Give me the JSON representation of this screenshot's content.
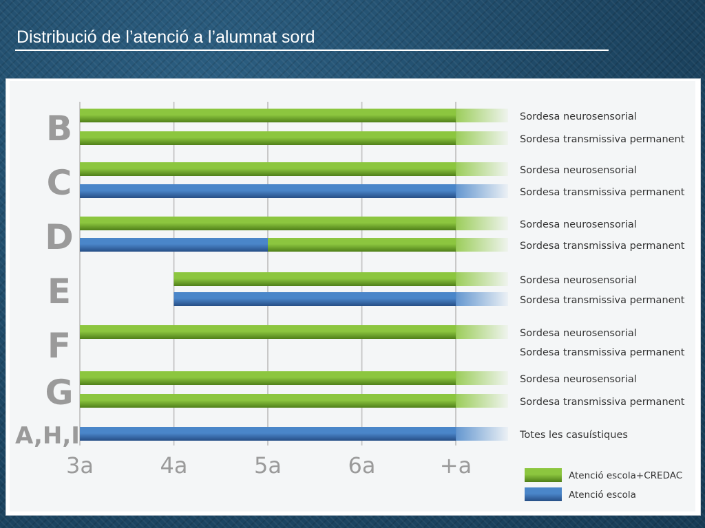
{
  "slide": {
    "title": "Distribució de l’atenció a l’alumnat sord"
  },
  "colors": {
    "green": "#8cc63f",
    "green_dark": "#4f7f19",
    "blue": "#4a86c9",
    "blue_dark": "#264f86",
    "axis_text": "#9a9a9a",
    "grid": "#c8c8c8",
    "label_text": "#333333"
  },
  "chart_data": {
    "type": "bar",
    "orientation": "horizontal",
    "stacked": true,
    "x_ticks": [
      "3a",
      "4a",
      "5a",
      "6a",
      "+a"
    ],
    "x_range": [
      "3a",
      "+a"
    ],
    "grid": true,
    "legend_position": "bottom-right",
    "legend": [
      {
        "key": "escola_credac",
        "label": "Atenció escola+CREDAC",
        "color": "#8cc63f"
      },
      {
        "key": "escola",
        "label": "Atenció escola",
        "color": "#4a86c9"
      }
    ],
    "groups": [
      {
        "name": "B",
        "rows": [
          {
            "label": "Sordesa neurosensorial",
            "segments": [
              {
                "from": 0,
                "to": 4,
                "series": "escola_credac"
              }
            ]
          },
          {
            "label": "Sordesa transmissiva permanent",
            "segments": [
              {
                "from": 0,
                "to": 4,
                "series": "escola_credac"
              }
            ]
          }
        ]
      },
      {
        "name": "C",
        "rows": [
          {
            "label": "Sordesa neurosensorial",
            "segments": [
              {
                "from": 0,
                "to": 4,
                "series": "escola_credac"
              }
            ]
          },
          {
            "label": "Sordesa transmissiva permanent",
            "segments": [
              {
                "from": 0,
                "to": 4,
                "series": "escola"
              }
            ]
          }
        ]
      },
      {
        "name": "D",
        "rows": [
          {
            "label": "Sordesa neurosensorial",
            "segments": [
              {
                "from": 0,
                "to": 4,
                "series": "escola_credac"
              }
            ]
          },
          {
            "label": "Sordesa transmissiva permanent",
            "segments": [
              {
                "from": 0,
                "to": 2,
                "series": "escola"
              },
              {
                "from": 2,
                "to": 4,
                "series": "escola_credac"
              }
            ]
          }
        ]
      },
      {
        "name": "E",
        "rows": [
          {
            "label": "Sordesa neurosensorial",
            "segments": [
              {
                "from": 1,
                "to": 4,
                "series": "escola_credac"
              }
            ]
          },
          {
            "label": "Sordesa transmissiva permanent",
            "segments": [
              {
                "from": 1,
                "to": 4,
                "series": "escola"
              }
            ]
          }
        ]
      },
      {
        "name": "F",
        "rows": [
          {
            "label": "Sordesa neurosensorial",
            "segments": [
              {
                "from": 0,
                "to": 4,
                "series": "escola_credac"
              }
            ]
          },
          {
            "label": "Sordesa transmissiva permanent",
            "segments": []
          }
        ]
      },
      {
        "name": "G",
        "rows": [
          {
            "label": "Sordesa neurosensorial",
            "segments": [
              {
                "from": 0,
                "to": 4,
                "series": "escola_credac"
              }
            ]
          },
          {
            "label": "Sordesa transmissiva permanent",
            "segments": [
              {
                "from": 0,
                "to": 4,
                "series": "escola_credac"
              }
            ]
          }
        ]
      },
      {
        "name": "A,H,I",
        "rows": [
          {
            "label": "Totes les casuístiques",
            "segments": [
              {
                "from": 0,
                "to": 4,
                "series": "escola"
              }
            ]
          }
        ]
      }
    ]
  }
}
